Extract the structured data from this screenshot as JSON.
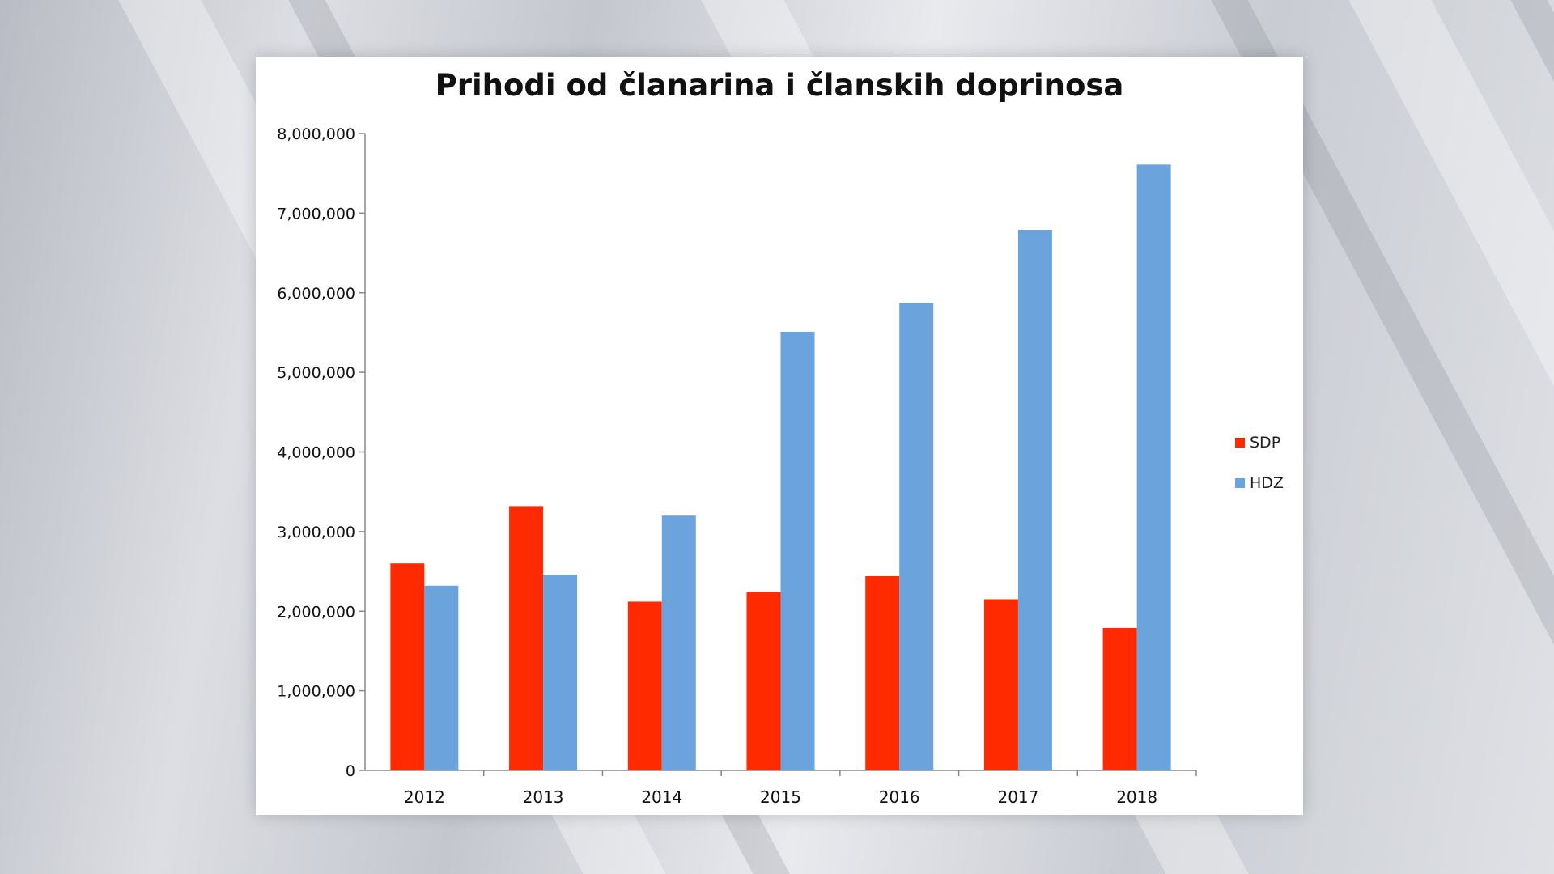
{
  "chart_data": {
    "type": "bar",
    "title": "Prihodi od članarina i članskih doprinosa",
    "xlabel": "",
    "ylabel": "",
    "categories": [
      "2012",
      "2013",
      "2014",
      "2015",
      "2016",
      "2017",
      "2018"
    ],
    "series": [
      {
        "name": "SDP",
        "color": "#ff2a00",
        "values": [
          2600000,
          3320000,
          2120000,
          2240000,
          2440000,
          2150000,
          1790000
        ]
      },
      {
        "name": "HDZ",
        "color": "#6ba3dc",
        "values": [
          2320000,
          2460000,
          3200000,
          5510000,
          5870000,
          6790000,
          7610000
        ]
      }
    ],
    "ylim": [
      0,
      8000000
    ],
    "yticks": [
      "0",
      "1,000,000",
      "2,000,000",
      "3,000,000",
      "4,000,000",
      "5,000,000",
      "6,000,000",
      "7,000,000",
      "8,000,000"
    ],
    "grid": false,
    "legend": "right"
  }
}
